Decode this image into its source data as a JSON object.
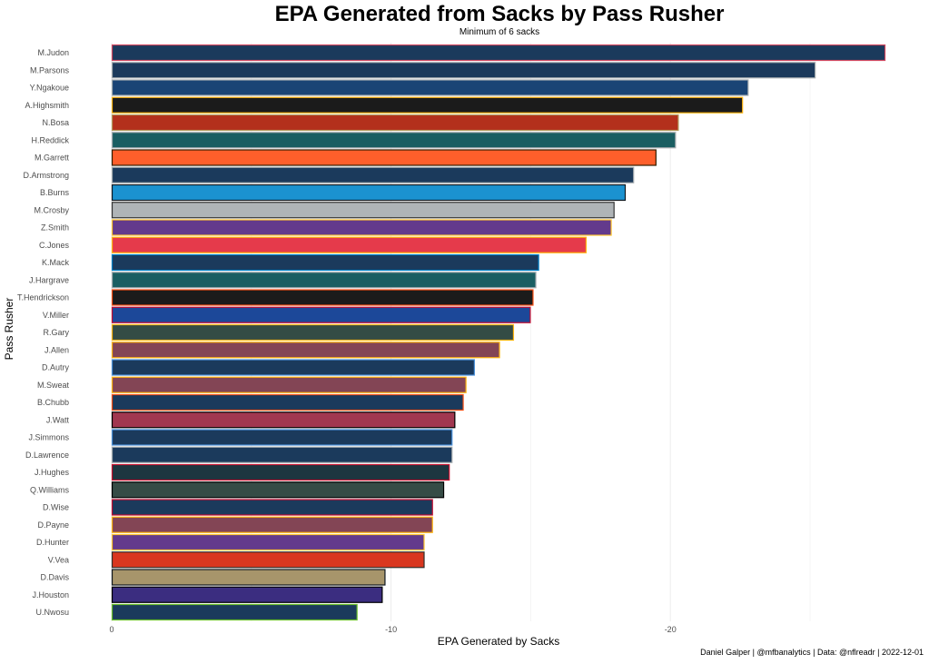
{
  "chart_data": {
    "type": "bar",
    "orientation": "horizontal",
    "title": "EPA Generated from Sacks by Pass Rusher",
    "subtitle": "Minimum of 6 sacks",
    "xlabel": "EPA Generated by Sacks",
    "ylabel": "Pass Rusher",
    "caption": "Daniel Galper | @mfbanalytics | Data: @nflreadr | 2022-12-01",
    "xlim": [
      0,
      -27.8
    ],
    "x_reversed": true,
    "x_ticks": [
      0,
      -10,
      -20
    ],
    "x_tick_labels": [
      "0",
      "-10",
      "-20"
    ],
    "minor_gridlines": [
      -5,
      -15,
      -25
    ],
    "grid": true,
    "categories": [
      "M.Judon",
      "M.Parsons",
      "Y.Ngakoue",
      "A.Highsmith",
      "N.Bosa",
      "H.Reddick",
      "M.Garrett",
      "D.Armstrong",
      "B.Burns",
      "M.Crosby",
      "Z.Smith",
      "C.Jones",
      "K.Mack",
      "J.Hargrave",
      "T.Hendrickson",
      "V.Miller",
      "R.Gary",
      "J.Allen",
      "D.Autry",
      "M.Sweat",
      "B.Chubb",
      "J.Watt",
      "J.Simmons",
      "D.Lawrence",
      "J.Hughes",
      "Q.Williams",
      "D.Wise",
      "D.Payne",
      "D.Hunter",
      "V.Vea",
      "D.Davis",
      "J.Houston",
      "U.Nwosu"
    ],
    "values": [
      -27.7,
      -25.2,
      -22.8,
      -22.6,
      -20.3,
      -20.2,
      -19.5,
      -18.7,
      -18.4,
      -18.0,
      -17.9,
      -17.0,
      -15.3,
      -15.2,
      -15.1,
      -15.0,
      -14.4,
      -13.9,
      -13.0,
      -12.7,
      -12.6,
      -12.3,
      -12.2,
      -12.2,
      -12.1,
      -11.9,
      -11.5,
      -11.5,
      -11.2,
      -11.2,
      -9.8,
      -9.7,
      -8.8
    ],
    "fill_colors": [
      "#1b3a5c",
      "#1b3a5c",
      "#1a4475",
      "#1b1b1b",
      "#b3301c",
      "#1a5e62",
      "#fe5f2b",
      "#1b3a5c",
      "#1b92d0",
      "#afb4b7",
      "#633a8c",
      "#e53a4b",
      "#1b3a5c",
      "#1a5e62",
      "#1b1b1b",
      "#1c4899",
      "#344c45",
      "#834555",
      "#1b3a5c",
      "#834555",
      "#1b3a5c",
      "#a13750",
      "#1b3a5c",
      "#1b3a5c",
      "#1d3640",
      "#364c46",
      "#1b3a5c",
      "#834555",
      "#633a8c",
      "#d9371f",
      "#a7956b",
      "#3b2d80",
      "#1b3a5c"
    ],
    "border_colors": [
      "#d0475f",
      "#a5acaf",
      "#a5acaf",
      "#ffb612",
      "#b3995d",
      "#a5acaf",
      "#311d00",
      "#a5acaf",
      "#101820",
      "#333333",
      "#ffc62f",
      "#ffb612",
      "#0080c6",
      "#a5acaf",
      "#fb4f14",
      "#c60c30",
      "#ffb612",
      "#ffb612",
      "#4b92db",
      "#ffb612",
      "#fb4f14",
      "#000000",
      "#4b92db",
      "#a5acaf",
      "#c8102e",
      "#000000",
      "#c60c30",
      "#ffb612",
      "#ffc62f",
      "#34302b",
      "#101820",
      "#000000",
      "#69be28"
    ]
  }
}
